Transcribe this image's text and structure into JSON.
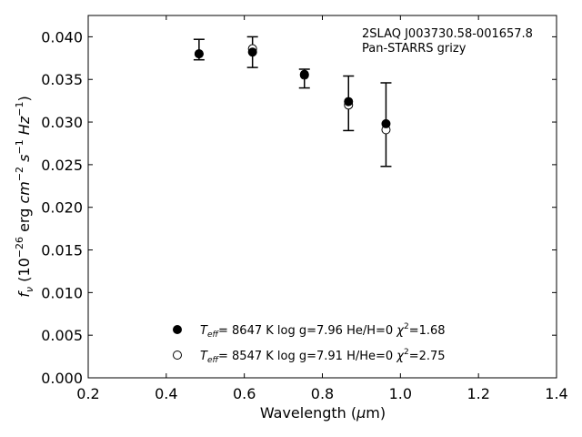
{
  "chart_data": {
    "type": "scatter",
    "xlabel": "Wavelength (μm)",
    "ylabel": "f_ν (10^−26 erg cm^−2 s^−1 Hz^−1)",
    "xlim": [
      0.2,
      1.4
    ],
    "ylim": [
      0.0,
      0.0425
    ],
    "x_ticks": [
      "0.2",
      "0.4",
      "0.6",
      "0.8",
      "1.0",
      "1.2",
      "1.4"
    ],
    "y_ticks": [
      "0.000",
      "0.005",
      "0.010",
      "0.015",
      "0.020",
      "0.025",
      "0.030",
      "0.035",
      "0.040"
    ],
    "grid": false,
    "legend_position": "lower-center",
    "annotation": [
      "2SLAQ J003730.58-001657.8",
      "Pan-STARRS grizy"
    ],
    "observed": {
      "x": [
        0.484,
        0.621,
        0.754,
        0.867,
        0.963
      ],
      "y": [
        0.0385,
        0.0382,
        0.0351,
        0.0322,
        0.0297
      ],
      "yerr": [
        0.0012,
        0.0018,
        0.0011,
        0.0032,
        0.0049
      ]
    },
    "series": [
      {
        "name": "T_eff= 8647 K log g=7.96 He/H=0 χ²=1.68",
        "marker": "filled-circle",
        "x": [
          0.484,
          0.621,
          0.754,
          0.867,
          0.963
        ],
        "y": [
          0.038,
          0.0382,
          0.0356,
          0.0324,
          0.0298
        ]
      },
      {
        "name": "T_eff= 8547 K log g=7.91 H/He=0 χ²=2.75",
        "marker": "open-circle",
        "x": [
          0.484,
          0.621,
          0.754,
          0.867,
          0.963
        ],
        "y": [
          0.038,
          0.0386,
          0.0355,
          0.032,
          0.0291
        ]
      }
    ]
  }
}
